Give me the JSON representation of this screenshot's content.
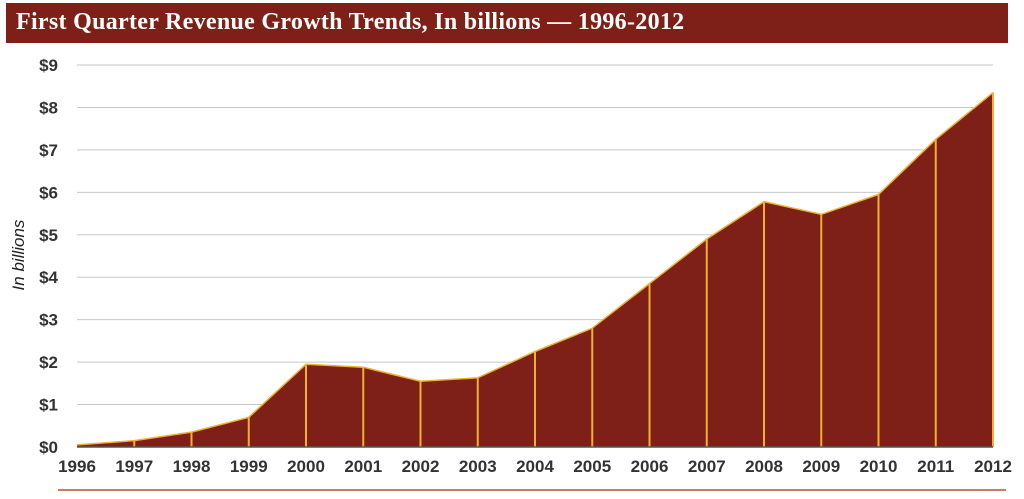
{
  "title": "First Quarter Revenue Growth Trends, In billions — 1996-2012",
  "colors": {
    "title_bg": "#7e1f18",
    "area_fill": "#7e1f18",
    "edge_line": "#f0b030",
    "grid": "#c8c8c8"
  },
  "chart_data": {
    "type": "area",
    "title": "First Quarter Revenue Growth Trends, In billions — 1996-2012",
    "xlabel": "",
    "ylabel": "In billions",
    "x": [
      "1996",
      "1997",
      "1998",
      "1999",
      "2000",
      "2001",
      "2002",
      "2003",
      "2004",
      "2005",
      "2006",
      "2007",
      "2008",
      "2009",
      "2010",
      "2011",
      "2012"
    ],
    "values": [
      0.05,
      0.15,
      0.35,
      0.7,
      1.95,
      1.88,
      1.55,
      1.63,
      2.25,
      2.8,
      3.85,
      4.9,
      5.78,
      5.48,
      5.95,
      7.25,
      8.35
    ],
    "ylim": [
      0,
      9
    ],
    "y_ticks": [
      0,
      1,
      2,
      3,
      4,
      5,
      6,
      7,
      8,
      9
    ],
    "y_tick_labels": [
      "$0",
      "$1",
      "$2",
      "$3",
      "$4",
      "$5",
      "$6",
      "$7",
      "$8",
      "$9"
    ],
    "grid": true
  }
}
